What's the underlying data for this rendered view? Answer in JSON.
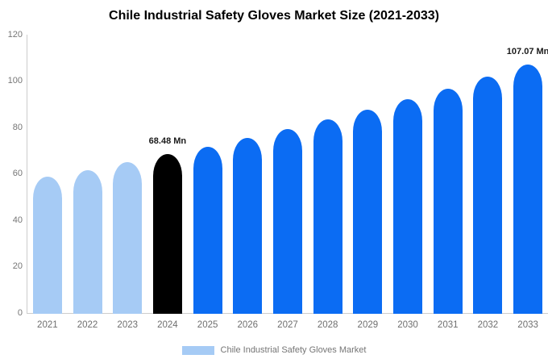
{
  "title": "Chile Industrial Safety Gloves Market Size (2021-2033)",
  "chart_data": {
    "type": "bar",
    "title": "Chile Industrial Safety Gloves Market Size (2021-2033)",
    "xlabel": "",
    "ylabel": "",
    "ylim": [
      0,
      120
    ],
    "yticks": [
      0,
      20,
      40,
      60,
      80,
      100,
      120
    ],
    "grid": false,
    "categories": [
      "2021",
      "2022",
      "2023",
      "2024",
      "2025",
      "2026",
      "2027",
      "2028",
      "2029",
      "2030",
      "2031",
      "2032",
      "2033"
    ],
    "values": [
      58.8,
      61.7,
      65.2,
      68.48,
      71.9,
      75.6,
      79.5,
      83.5,
      87.7,
      92.2,
      96.9,
      101.9,
      107.07
    ],
    "bar_colors": [
      "#A6CBF5",
      "#A6CBF5",
      "#A6CBF5",
      "#000000",
      "#0B6CF3",
      "#0B6CF3",
      "#0B6CF3",
      "#0B6CF3",
      "#0B6CF3",
      "#0B6CF3",
      "#0B6CF3",
      "#0B6CF3",
      "#0B6CF3"
    ],
    "annotations": [
      {
        "category": "2024",
        "text": "68.48 Mn"
      },
      {
        "category": "2033",
        "text": "107.07 Mn"
      }
    ],
    "legend": {
      "position": "bottom",
      "items": [
        {
          "label": "Chile Industrial Safety Gloves Market",
          "color": "#A6CBF5"
        }
      ]
    }
  },
  "colors": {
    "past_bar": "#A6CBF5",
    "highlight_bar": "#000000",
    "future_bar": "#0B6CF3",
    "axis_line": "#CCCCCC",
    "tick_text": "#757575",
    "data_label_text": "#1A1A1A",
    "legend_text": "#757575",
    "background": "#FFFFFF",
    "title_text": "#000000"
  }
}
